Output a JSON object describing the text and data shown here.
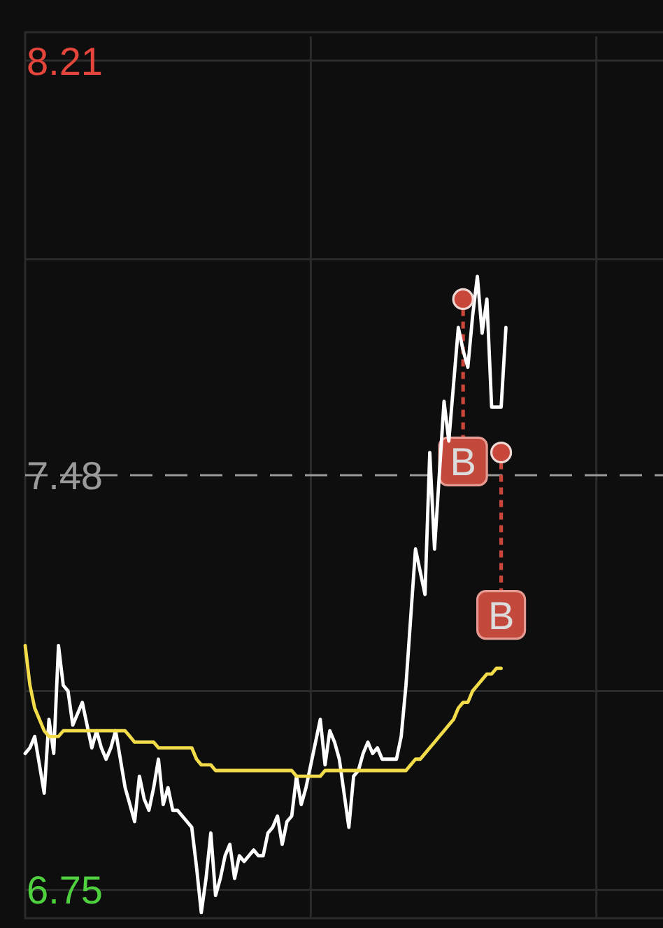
{
  "chart_data": {
    "type": "line",
    "categories": [
      null,
      null,
      null,
      null,
      null,
      null,
      null,
      null,
      null,
      null,
      null,
      null,
      null,
      null,
      null,
      null,
      null,
      null,
      null,
      null,
      null,
      null,
      null,
      null,
      null,
      null,
      null,
      null,
      null,
      null,
      null,
      null,
      null,
      null,
      null,
      null,
      null,
      null,
      null,
      null,
      null,
      null,
      null,
      null,
      null,
      null,
      null,
      null,
      null,
      null,
      null,
      null,
      null,
      null,
      null,
      null,
      null,
      null,
      null,
      null,
      null,
      null,
      null,
      null,
      null,
      null,
      null,
      null,
      null,
      null,
      null,
      null,
      null,
      null,
      null,
      null,
      null,
      null,
      null,
      null,
      null,
      null,
      null,
      null,
      null,
      null,
      null,
      null,
      null,
      null,
      null,
      null,
      null,
      null,
      null,
      null,
      null,
      null,
      null,
      null,
      null,
      null,
      null,
      null,
      null,
      null,
      null,
      null,
      null,
      null,
      null,
      null,
      null,
      null,
      null,
      null,
      null,
      null,
      null,
      null,
      null,
      null,
      null,
      null,
      null,
      null,
      null,
      null,
      null,
      null,
      null,
      null,
      null,
      null,
      null
    ],
    "ylim": [
      6.7,
      8.26
    ],
    "yticks": [
      8.21,
      {
        "value": 7.86,
        "label": null
      },
      7.48,
      {
        "value": 7.1,
        "label": null
      },
      6.75
    ],
    "tick_labels": "y",
    "grid": true,
    "line_style": "solid",
    "ref_lines": [
      {
        "axis": "y",
        "value": 7.48,
        "color": "#9a9a9a",
        "line_style": "dashed"
      }
    ],
    "series": [
      {
        "color": "#ffffff",
        "values": [
          6.99,
          7.0,
          7.02,
          6.97,
          6.92,
          7.05,
          6.99,
          7.18,
          7.11,
          7.1,
          7.04,
          7.06,
          7.08,
          7.04,
          7.0,
          7.03,
          7.0,
          6.98,
          7.0,
          7.03,
          6.98,
          6.93,
          6.9,
          6.87,
          6.95,
          6.91,
          6.89,
          6.93,
          6.98,
          6.9,
          6.93,
          6.89,
          6.89,
          6.88,
          6.87,
          6.86,
          6.79,
          6.71,
          6.77,
          6.85,
          6.74,
          6.77,
          6.81,
          6.83,
          6.77,
          6.81,
          6.8,
          6.81,
          6.82,
          6.81,
          6.81,
          6.85,
          6.86,
          6.88,
          6.83,
          6.87,
          6.88,
          6.95,
          6.9,
          6.93,
          6.97,
          7.01,
          7.05,
          6.97,
          7.03,
          7.01,
          6.98,
          6.92,
          6.86,
          6.95,
          6.96,
          6.99,
          7.01,
          6.99,
          7.0,
          6.98,
          6.98,
          6.98,
          6.98,
          7.02,
          7.11,
          7.23,
          7.35,
          7.31,
          7.27,
          7.52,
          7.35,
          7.48,
          7.61,
          7.54,
          7.64,
          7.74,
          7.7,
          7.67,
          7.76,
          7.83,
          7.73,
          7.79,
          7.6,
          7.6,
          7.6,
          7.74,
          null,
          null,
          null,
          null,
          null,
          null,
          null,
          null,
          null,
          null,
          null,
          null,
          null,
          null,
          null,
          null,
          null,
          null,
          null,
          null,
          null,
          null,
          null,
          null,
          null,
          null,
          null,
          null,
          null,
          null,
          null,
          null,
          null
        ]
      },
      {
        "color": "#f2dc4a",
        "values": [
          7.18,
          7.11,
          7.07,
          7.05,
          7.03,
          7.02,
          7.02,
          7.02,
          7.03,
          7.03,
          7.03,
          7.03,
          7.03,
          7.03,
          7.03,
          7.03,
          7.03,
          7.03,
          7.03,
          7.03,
          7.03,
          7.03,
          7.02,
          7.01,
          7.01,
          7.01,
          7.01,
          7.01,
          7.0,
          7.0,
          7.0,
          7.0,
          7.0,
          7.0,
          7.0,
          7.0,
          6.98,
          6.97,
          6.97,
          6.97,
          6.96,
          6.96,
          6.96,
          6.96,
          6.96,
          6.96,
          6.96,
          6.96,
          6.96,
          6.96,
          6.96,
          6.96,
          6.96,
          6.96,
          6.96,
          6.96,
          6.96,
          6.95,
          6.95,
          6.95,
          6.95,
          6.95,
          6.95,
          6.96,
          6.96,
          6.96,
          6.96,
          6.96,
          6.96,
          6.96,
          6.96,
          6.96,
          6.96,
          6.96,
          6.96,
          6.96,
          6.96,
          6.96,
          6.96,
          6.96,
          6.96,
          6.97,
          6.98,
          6.98,
          6.99,
          7.0,
          7.01,
          7.02,
          7.03,
          7.04,
          7.05,
          7.07,
          7.08,
          7.08,
          7.1,
          7.11,
          7.12,
          7.13,
          7.13,
          7.14,
          7.14,
          null,
          null,
          null,
          null,
          null,
          null,
          null,
          null,
          null,
          null,
          null,
          null,
          null,
          null,
          null,
          null,
          null,
          null,
          null,
          null,
          null,
          null,
          null,
          null,
          null,
          null,
          null,
          null,
          null,
          null,
          null,
          null,
          null,
          null
        ]
      },
      {
        "type": "scatter",
        "color": "#c8473a",
        "marker": "circle",
        "values": [
          null,
          null,
          null,
          null,
          null,
          null,
          null,
          null,
          null,
          null,
          null,
          null,
          null,
          null,
          null,
          null,
          null,
          null,
          null,
          null,
          null,
          null,
          null,
          null,
          null,
          null,
          null,
          null,
          null,
          null,
          null,
          null,
          null,
          null,
          null,
          null,
          null,
          null,
          null,
          null,
          null,
          null,
          null,
          null,
          null,
          null,
          null,
          null,
          null,
          null,
          null,
          null,
          null,
          null,
          null,
          null,
          null,
          null,
          null,
          null,
          null,
          null,
          null,
          null,
          null,
          null,
          null,
          null,
          null,
          null,
          null,
          null,
          null,
          null,
          null,
          null,
          null,
          null,
          null,
          null,
          null,
          null,
          null,
          null,
          null,
          null,
          null,
          null,
          null,
          null,
          null,
          null,
          7.79,
          null,
          null,
          null,
          null,
          null,
          null,
          null,
          7.52,
          null,
          null,
          null,
          null,
          null,
          null,
          null,
          null,
          null,
          null,
          null,
          null,
          null,
          null,
          null,
          null,
          null,
          null,
          null,
          null,
          null,
          null,
          null,
          null,
          null,
          null,
          null,
          null,
          null,
          null,
          null,
          null,
          null,
          null
        ]
      }
    ],
    "annotations": [
      {
        "text": "B",
        "y": 7.79
      },
      {
        "text": "B",
        "y": 7.52
      }
    ]
  }
}
